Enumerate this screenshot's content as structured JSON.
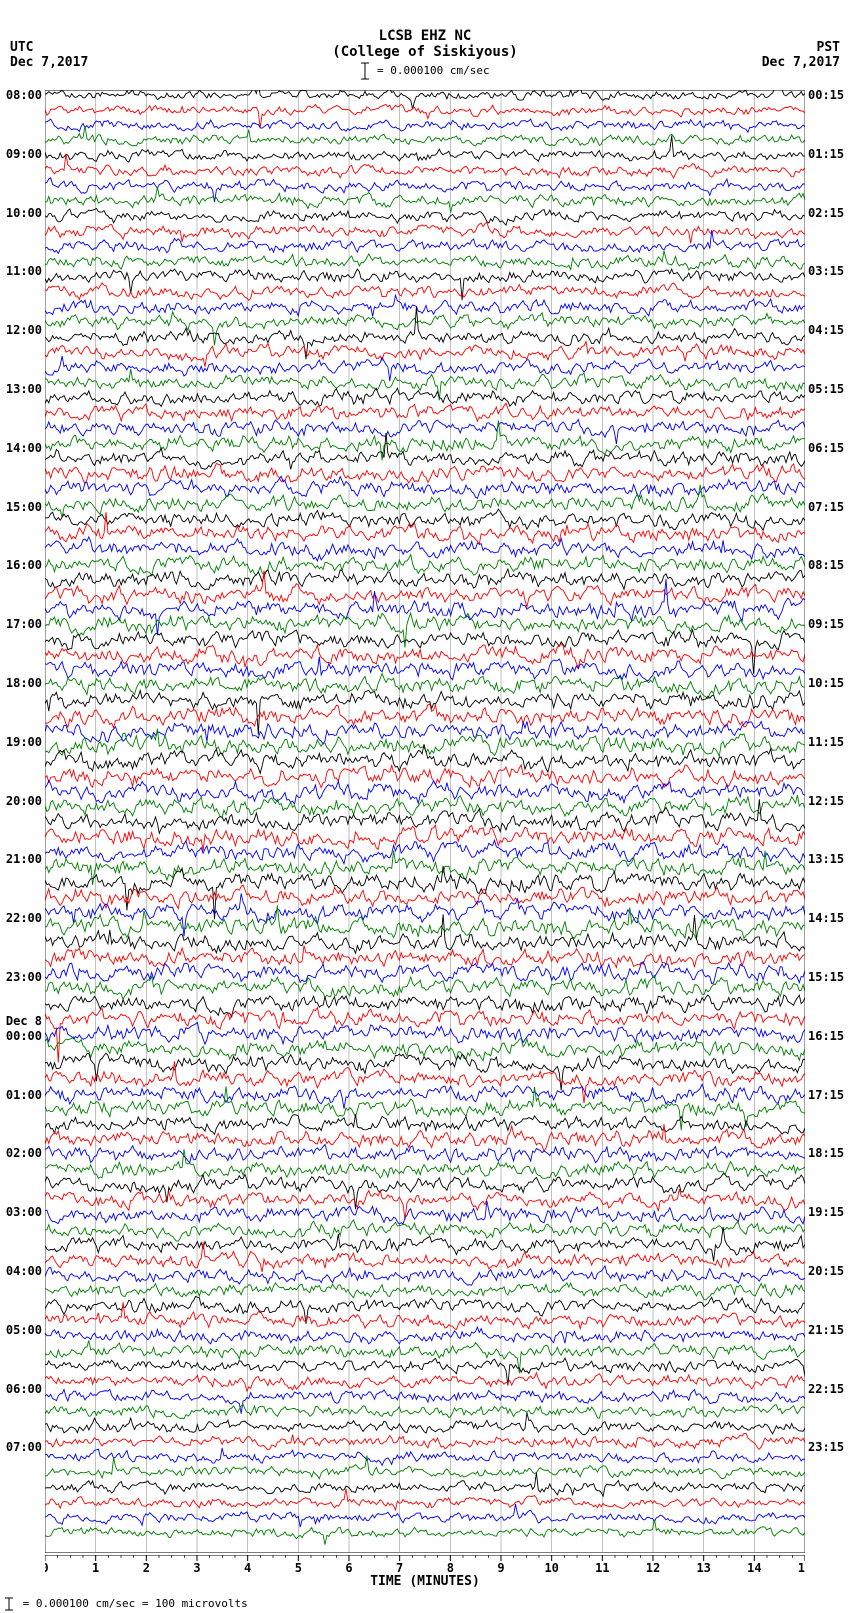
{
  "header": {
    "station": "LCSB EHZ NC",
    "location": "(College of Siskiyous)",
    "scale_text": " = 0.000100 cm/sec"
  },
  "timezones": {
    "left_tz": "UTC",
    "left_date": "Dec 7,2017",
    "right_tz": "PST",
    "right_date": "Dec 7,2017"
  },
  "footer": " = 0.000100 cm/sec =    100 microvolts",
  "x_axis": {
    "title": "TIME (MINUTES)",
    "min": 0,
    "max": 15,
    "major_step": 1
  },
  "plot": {
    "background": "#ffffff",
    "grid_color": "#808080",
    "trace_colors": [
      "#000000",
      "#ff0000",
      "#0000ff",
      "#008000"
    ],
    "n_traces": 96,
    "trace_spacing": 14.7,
    "trace_amplitude": 4.2,
    "seed": 7
  },
  "utc_labels": [
    {
      "text": "08:00",
      "row": 0
    },
    {
      "text": "09:00",
      "row": 4
    },
    {
      "text": "10:00",
      "row": 8
    },
    {
      "text": "11:00",
      "row": 12
    },
    {
      "text": "12:00",
      "row": 16
    },
    {
      "text": "13:00",
      "row": 20
    },
    {
      "text": "14:00",
      "row": 24
    },
    {
      "text": "15:00",
      "row": 28
    },
    {
      "text": "16:00",
      "row": 32
    },
    {
      "text": "17:00",
      "row": 36
    },
    {
      "text": "18:00",
      "row": 40
    },
    {
      "text": "19:00",
      "row": 44
    },
    {
      "text": "20:00",
      "row": 48
    },
    {
      "text": "21:00",
      "row": 52
    },
    {
      "text": "22:00",
      "row": 56
    },
    {
      "text": "23:00",
      "row": 60
    },
    {
      "text": "00:00",
      "row": 64
    },
    {
      "text": "01:00",
      "row": 68
    },
    {
      "text": "02:00",
      "row": 72
    },
    {
      "text": "03:00",
      "row": 76
    },
    {
      "text": "04:00",
      "row": 80
    },
    {
      "text": "05:00",
      "row": 84
    },
    {
      "text": "06:00",
      "row": 88
    },
    {
      "text": "07:00",
      "row": 92
    }
  ],
  "pst_labels": [
    {
      "text": "00:15",
      "row": 0
    },
    {
      "text": "01:15",
      "row": 4
    },
    {
      "text": "02:15",
      "row": 8
    },
    {
      "text": "03:15",
      "row": 12
    },
    {
      "text": "04:15",
      "row": 16
    },
    {
      "text": "05:15",
      "row": 20
    },
    {
      "text": "06:15",
      "row": 24
    },
    {
      "text": "07:15",
      "row": 28
    },
    {
      "text": "08:15",
      "row": 32
    },
    {
      "text": "09:15",
      "row": 36
    },
    {
      "text": "10:15",
      "row": 40
    },
    {
      "text": "11:15",
      "row": 44
    },
    {
      "text": "12:15",
      "row": 48
    },
    {
      "text": "13:15",
      "row": 52
    },
    {
      "text": "14:15",
      "row": 56
    },
    {
      "text": "15:15",
      "row": 60
    },
    {
      "text": "16:15",
      "row": 64
    },
    {
      "text": "17:15",
      "row": 68
    },
    {
      "text": "18:15",
      "row": 72
    },
    {
      "text": "19:15",
      "row": 76
    },
    {
      "text": "20:15",
      "row": 80
    },
    {
      "text": "21:15",
      "row": 84
    },
    {
      "text": "22:15",
      "row": 88
    },
    {
      "text": "23:15",
      "row": 92
    }
  ],
  "day_label": {
    "text": "Dec 8",
    "row": 63
  }
}
